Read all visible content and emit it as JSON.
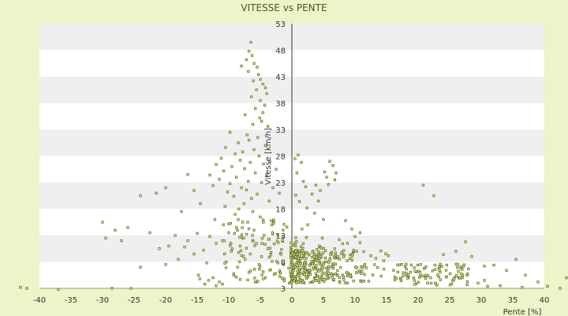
{
  "chart_data": {
    "type": "scatter",
    "title": "VITESSE vs PENTE",
    "xlabel": "Pente [%]",
    "ylabel": "Vitesse [km/h]",
    "xlim": [
      -40,
      40
    ],
    "ylim": [
      3,
      53
    ],
    "x_ticks": [
      "-40",
      "-35",
      "-30",
      "-25",
      "-20",
      "-15",
      "-10",
      "-5",
      "0",
      "5",
      "10",
      "15",
      "20",
      "25",
      "30",
      "35",
      "40"
    ],
    "y_ticks": [
      "3",
      "8",
      "13",
      "18",
      "23",
      "28",
      "33",
      "38",
      "43",
      "48",
      "53"
    ],
    "background_color": "#eef3c9",
    "band_colors": [
      "#ffffff",
      "#efefef"
    ],
    "marker_color": "#6b7a1a",
    "grid": true,
    "legend": "none",
    "cluster_points": [
      [
        -6.5,
        49.5
      ],
      [
        -6.8,
        47.8
      ],
      [
        -6.3,
        47.0
      ],
      [
        -7.2,
        46.2
      ],
      [
        -6.0,
        45.5
      ],
      [
        -8.0,
        45.0
      ],
      [
        -5.5,
        44.8
      ],
      [
        -6.9,
        44.0
      ],
      [
        -5.3,
        43.4
      ],
      [
        -5.0,
        42.5
      ],
      [
        -6.1,
        42.2
      ],
      [
        -4.6,
        41.6
      ],
      [
        -4.2,
        40.9
      ],
      [
        -5.6,
        40.5
      ],
      [
        -4.0,
        39.8
      ],
      [
        -6.4,
        39.2
      ],
      [
        -5.0,
        38.5
      ],
      [
        -4.3,
        37.6
      ],
      [
        -5.8,
        37.0
      ],
      [
        -4.6,
        36.2
      ],
      [
        -7.4,
        35.8
      ],
      [
        -5.1,
        35.2
      ],
      [
        -4.8,
        34.6
      ],
      [
        -6.2,
        34.0
      ],
      [
        -3.8,
        33.6
      ],
      [
        -9.8,
        32.5
      ],
      [
        -7.1,
        32.0
      ],
      [
        -5.4,
        31.5
      ],
      [
        -6.8,
        31.0
      ],
      [
        -8.5,
        30.5
      ],
      [
        -4.2,
        30.0
      ],
      [
        -10.5,
        29.6
      ],
      [
        -6.0,
        29.2
      ],
      [
        -7.8,
        28.8
      ],
      [
        -9.0,
        28.4
      ],
      [
        -5.2,
        28.0
      ],
      [
        -11.2,
        27.6
      ],
      [
        -8.2,
        27.2
      ],
      [
        -6.6,
        26.8
      ],
      [
        -12.0,
        26.4
      ],
      [
        -9.5,
        26.0
      ],
      [
        -7.5,
        25.6
      ],
      [
        -10.8,
        25.2
      ],
      [
        -5.8,
        24.8
      ],
      [
        -13.0,
        24.4
      ],
      [
        -8.8,
        24.0
      ],
      [
        -11.5,
        23.6
      ],
      [
        -6.9,
        23.2
      ],
      [
        -9.8,
        22.8
      ],
      [
        -12.5,
        22.4
      ],
      [
        -8.0,
        22.0
      ],
      [
        -7.2,
        21.6
      ],
      [
        -10.2,
        21.2
      ],
      [
        -5.5,
        20.8
      ],
      [
        -9.2,
        20.4
      ],
      [
        -6.4,
        20.0
      ],
      [
        -4.5,
        26.5
      ],
      [
        -3.5,
        27.0
      ],
      [
        -4.0,
        24.5
      ],
      [
        -3.0,
        22.0
      ],
      [
        -2.5,
        25.5
      ],
      [
        -3.6,
        19.5
      ],
      [
        -2.0,
        21.0
      ],
      [
        -4.8,
        23.0
      ],
      [
        -7.6,
        19.0
      ],
      [
        -10.6,
        18.5
      ],
      [
        -8.4,
        18.0
      ],
      [
        -6.2,
        17.5
      ],
      [
        -9.0,
        17.0
      ],
      [
        -5.0,
        16.5
      ],
      [
        -12.2,
        16.0
      ],
      [
        -7.0,
        15.5
      ],
      [
        -3.2,
        15.0
      ],
      [
        -8.8,
        14.5
      ],
      [
        -6.0,
        14.0
      ],
      [
        -10.0,
        13.5
      ],
      [
        -4.4,
        13.0
      ],
      [
        -7.8,
        12.5
      ],
      [
        -11.0,
        12.0
      ],
      [
        -5.6,
        11.5
      ],
      [
        -8.2,
        11.0
      ],
      [
        -3.8,
        10.5
      ],
      [
        -9.6,
        10.0
      ],
      [
        -6.6,
        9.5
      ],
      [
        -4.8,
        9.0
      ],
      [
        -7.4,
        8.5
      ],
      [
        -10.4,
        8.0
      ],
      [
        -5.2,
        7.5
      ],
      [
        -8.6,
        7.0
      ],
      [
        -3.4,
        6.5
      ],
      [
        -6.8,
        6.0
      ],
      [
        -9.2,
        5.5
      ],
      [
        -4.2,
        5.0
      ],
      [
        -7.0,
        4.6
      ],
      [
        -5.8,
        4.2
      ],
      [
        -2.6,
        5.8
      ],
      [
        -2.2,
        7.8
      ],
      [
        -1.8,
        9.6
      ],
      [
        -2.8,
        11.4
      ],
      [
        -1.4,
        12.8
      ],
      [
        -0.8,
        14.6
      ],
      [
        -0.5,
        6.8
      ],
      [
        -1.2,
        4.8
      ],
      [
        -0.4,
        4.0
      ],
      [
        -20,
        22.0
      ],
      [
        -21.5,
        21.0
      ],
      [
        -24,
        20.5
      ],
      [
        -16.5,
        24.5
      ],
      [
        -15.5,
        21.5
      ],
      [
        -14.5,
        19.0
      ],
      [
        -17.5,
        17.5
      ],
      [
        -26,
        14.5
      ],
      [
        -30,
        15.5
      ],
      [
        -28,
        14.0
      ],
      [
        -22.5,
        13.5
      ],
      [
        -27,
        12.0
      ],
      [
        -29.5,
        12.5
      ],
      [
        -18.5,
        13.0
      ],
      [
        -16.5,
        12.0
      ],
      [
        -19.5,
        11.0
      ],
      [
        -21.0,
        10.5
      ],
      [
        -17.0,
        10.8
      ],
      [
        -14.0,
        10.2
      ],
      [
        -13.0,
        12.8
      ],
      [
        -15.0,
        13.4
      ],
      [
        -12.0,
        11.5
      ],
      [
        -15.5,
        9.5
      ],
      [
        -18.0,
        8.5
      ],
      [
        -20.0,
        7.5
      ],
      [
        -24.0,
        7.0
      ],
      [
        -13.5,
        7.8
      ],
      [
        -14.8,
        5.5
      ],
      [
        -13.2,
        4.5
      ],
      [
        -12.5,
        5.0
      ],
      [
        -12.0,
        3.5
      ],
      [
        -11.5,
        4.2
      ],
      [
        -11.0,
        3.8
      ],
      [
        -13.8,
        3.8
      ],
      [
        -14.6,
        4.8
      ],
      [
        -25.5,
        3.0
      ],
      [
        -28.5,
        3.0
      ],
      [
        -37,
        2.8
      ],
      [
        -43,
        3.2
      ],
      [
        -42,
        3.0
      ],
      [
        0.5,
        27.5
      ],
      [
        1.0,
        28.2
      ],
      [
        1.5,
        26.8
      ],
      [
        0.8,
        24.8
      ],
      [
        1.8,
        23.2
      ],
      [
        2.2,
        22.2
      ],
      [
        0.6,
        20.6
      ],
      [
        1.2,
        19.4
      ],
      [
        2.4,
        18.2
      ],
      [
        3.2,
        20.8
      ],
      [
        3.8,
        22.5
      ],
      [
        4.5,
        21.5
      ],
      [
        5.2,
        25.0
      ],
      [
        6.0,
        27.0
      ],
      [
        6.5,
        26.2
      ],
      [
        5.5,
        24.0
      ],
      [
        6.8,
        23.5
      ],
      [
        5.8,
        22.6
      ],
      [
        7.0,
        24.8
      ],
      [
        4.2,
        19.5
      ],
      [
        3.6,
        17.2
      ],
      [
        5.0,
        16.0
      ],
      [
        2.5,
        15.0
      ],
      [
        1.6,
        14.2
      ],
      [
        8.5,
        15.8
      ],
      [
        9.5,
        14.2
      ],
      [
        10.0,
        12.8
      ],
      [
        10.8,
        13.5
      ],
      [
        7.5,
        12.2
      ],
      [
        8.8,
        11.5
      ],
      [
        20.8,
        22.5
      ],
      [
        22.5,
        20.5
      ],
      [
        27.5,
        11.8
      ],
      [
        26.0,
        10.0
      ],
      [
        24.0,
        9.4
      ],
      [
        28.5,
        9.0
      ],
      [
        30.5,
        7.2
      ],
      [
        32.0,
        7.4
      ],
      [
        34.0,
        6.4
      ],
      [
        35.5,
        8.5
      ],
      [
        37.0,
        5.5
      ],
      [
        39.0,
        4.2
      ],
      [
        40.5,
        3.4
      ],
      [
        42.5,
        3.0
      ],
      [
        43.5,
        5.0
      ],
      [
        36.5,
        3.2
      ],
      [
        33.0,
        3.5
      ],
      [
        31.0,
        3.4
      ],
      [
        30.5,
        4.5
      ],
      [
        29.5,
        4.0
      ],
      [
        27.0,
        5.0
      ],
      [
        25.5,
        4.5
      ],
      [
        24.5,
        5.2
      ],
      [
        22.0,
        5.0
      ],
      [
        21.5,
        4.0
      ],
      [
        23.0,
        3.6
      ]
    ],
    "dense_region_seed": 42
  }
}
